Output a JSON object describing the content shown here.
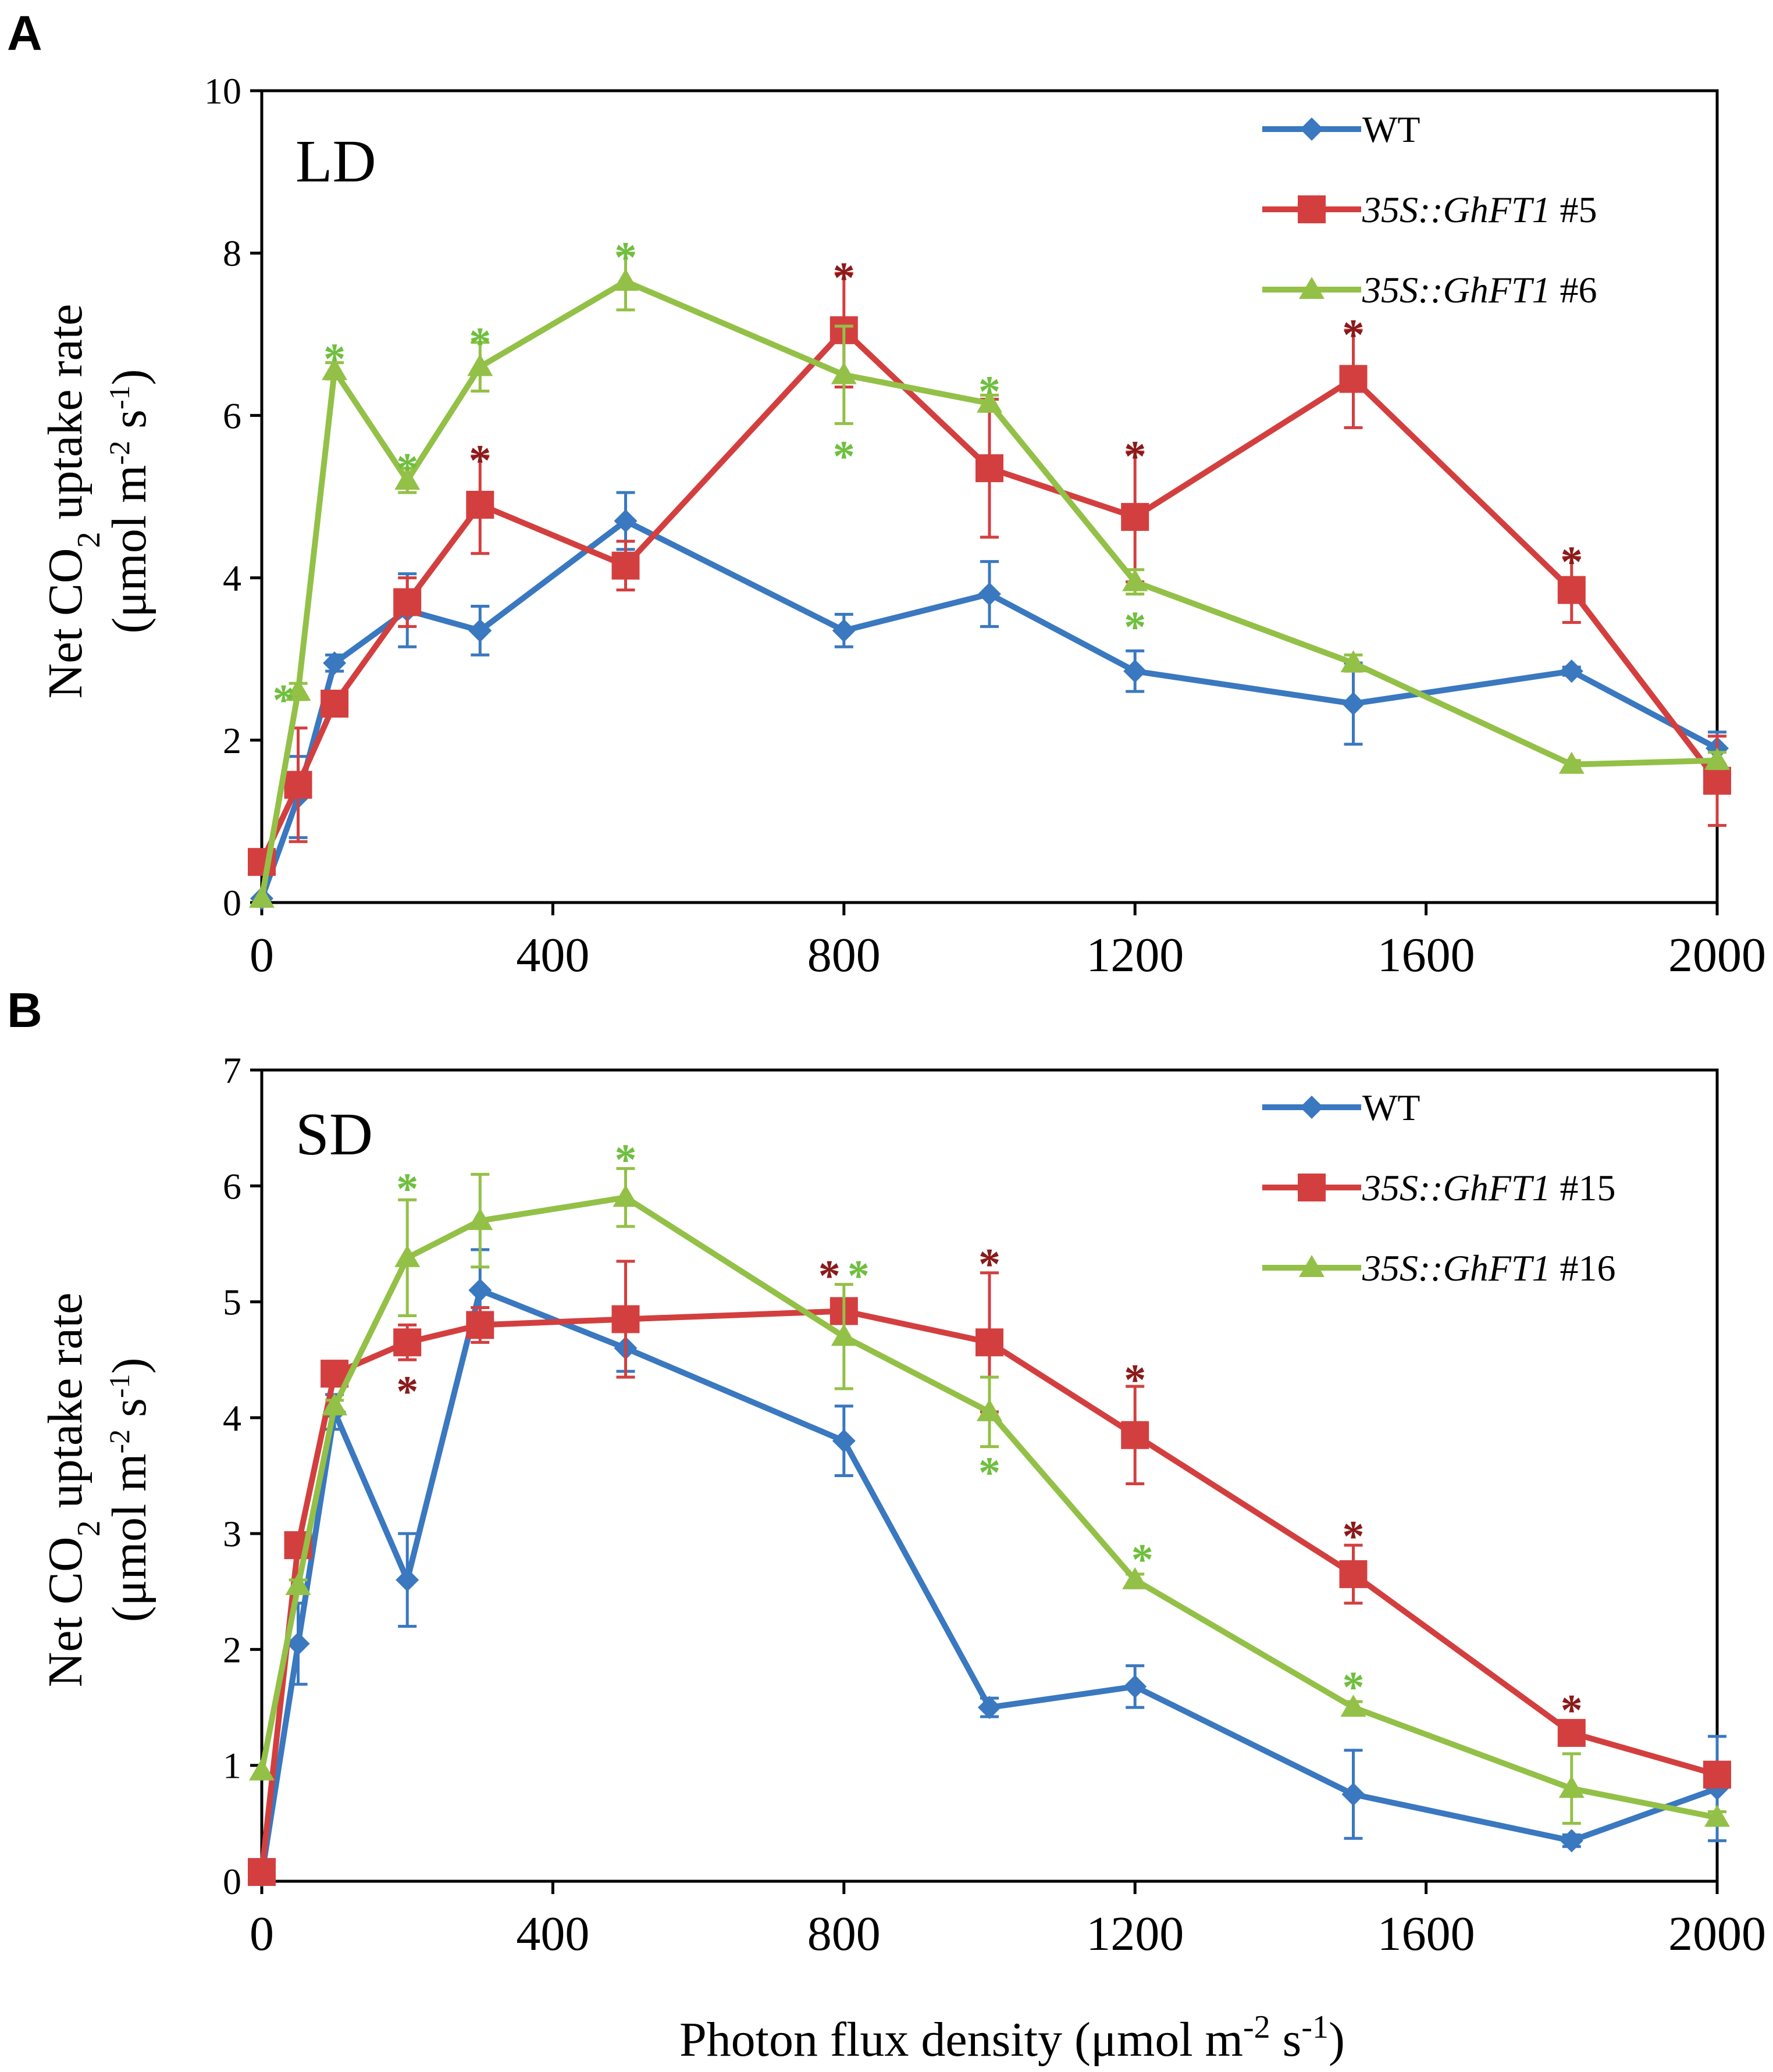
{
  "figure": {
    "x_axis_title": "Photon flux density (μmol m",
    "x_axis_title_sup1": "-2",
    "x_axis_title_mid": " s",
    "x_axis_title_sup2": "-1",
    "x_axis_title_end": ")",
    "y_axis_title_line1": "Net CO",
    "y_axis_title_line1_sub": "2",
    "y_axis_title_line1_end": " uptake rate",
    "y_axis_title_line2": "(μmol m",
    "y_axis_title_line2_sup1": "-2",
    "y_axis_title_line2_mid": " s",
    "y_axis_title_line2_sup2": "-1",
    "y_axis_title_line2_end": ")",
    "star_symbol": "*"
  },
  "colors": {
    "WT": "#3A78C0",
    "line_a": "#D33F3F",
    "line_b": "#93C047",
    "star_red": "#8B1A1A",
    "star_green": "#6FBF3F"
  },
  "chart_data": [
    {
      "panel": "A",
      "condition": "LD",
      "type": "line",
      "xlabel": "Photon flux density (μmol m-2 s-1)",
      "ylabel": "Net CO2 uptake rate (μmol m-2 s-1)",
      "xlim": [
        0,
        2000
      ],
      "ylim": [
        0,
        10
      ],
      "xticks": [
        0,
        400,
        800,
        1200,
        1600,
        2000
      ],
      "yticks": [
        0,
        2,
        4,
        6,
        8,
        10
      ],
      "legend_position": "top-right",
      "series": [
        {
          "name": "WT",
          "legend_plain": "WT",
          "legend_italic": "",
          "legend_suffix": "",
          "color_key": "WT",
          "marker": "diamond",
          "x": [
            0,
            50,
            100,
            200,
            300,
            500,
            800,
            1000,
            1200,
            1500,
            1800,
            2000
          ],
          "y": [
            0.05,
            1.3,
            2.95,
            3.6,
            3.35,
            4.7,
            3.35,
            3.8,
            2.85,
            2.45,
            2.85,
            1.9
          ],
          "err": [
            0,
            0.5,
            0.1,
            0.45,
            0.3,
            0.35,
            0.2,
            0.4,
            0.25,
            0.5,
            0.05,
            0.2
          ]
        },
        {
          "name": "35S::GhFT1 #5",
          "legend_plain": "",
          "legend_italic": "35S::GhFT1",
          "legend_suffix": " #5",
          "color_key": "line_a",
          "marker": "square",
          "x": [
            0,
            50,
            100,
            200,
            300,
            500,
            800,
            1000,
            1200,
            1500,
            1800,
            2000
          ],
          "y": [
            0.5,
            1.45,
            2.45,
            3.7,
            4.9,
            4.15,
            7.05,
            5.35,
            4.75,
            6.45,
            3.85,
            1.5
          ],
          "err": [
            0,
            0.7,
            0.1,
            0.3,
            0.6,
            0.3,
            0.7,
            0.85,
            0.8,
            0.6,
            0.4,
            0.55
          ]
        },
        {
          "name": "35S::GhFT1 #6",
          "legend_plain": "",
          "legend_italic": "35S::GhFT1",
          "legend_suffix": " #6",
          "color_key": "line_b",
          "marker": "triangle",
          "x": [
            0,
            50,
            100,
            200,
            300,
            500,
            800,
            1000,
            1200,
            1500,
            1800,
            2000
          ],
          "y": [
            0.05,
            2.6,
            6.55,
            5.2,
            6.6,
            7.65,
            6.5,
            6.15,
            3.95,
            2.95,
            1.7,
            1.75
          ],
          "err": [
            0,
            0.1,
            0.1,
            0.15,
            0.3,
            0.35,
            0.6,
            0.1,
            0.15,
            0.1,
            0.05,
            0.1
          ]
        }
      ],
      "annotations": [
        {
          "x": 300,
          "y": 5.55,
          "color_key": "star_red"
        },
        {
          "x": 800,
          "y": 7.8,
          "color_key": "star_red"
        },
        {
          "x": 1200,
          "y": 5.6,
          "color_key": "star_red"
        },
        {
          "x": 1500,
          "y": 7.1,
          "color_key": "star_red"
        },
        {
          "x": 1800,
          "y": 4.3,
          "color_key": "star_red"
        },
        {
          "x": 30,
          "y": 2.6,
          "color_key": "star_green"
        },
        {
          "x": 100,
          "y": 6.8,
          "color_key": "star_green"
        },
        {
          "x": 200,
          "y": 5.45,
          "color_key": "star_green"
        },
        {
          "x": 300,
          "y": 7.0,
          "color_key": "star_green"
        },
        {
          "x": 500,
          "y": 8.05,
          "color_key": "star_green"
        },
        {
          "x": 800,
          "y": 5.6,
          "color_key": "star_green"
        },
        {
          "x": 1000,
          "y": 6.4,
          "color_key": "star_green"
        },
        {
          "x": 1200,
          "y": 3.5,
          "color_key": "star_green"
        }
      ]
    },
    {
      "panel": "B",
      "condition": "SD",
      "type": "line",
      "xlabel": "Photon flux density (μmol m-2 s-1)",
      "ylabel": "Net CO2 uptake rate (μmol m-2 s-1)",
      "xlim": [
        0,
        2000
      ],
      "ylim": [
        0,
        7
      ],
      "xticks": [
        0,
        400,
        800,
        1200,
        1600,
        2000
      ],
      "yticks": [
        0,
        1,
        2,
        3,
        4,
        5,
        6,
        7
      ],
      "legend_position": "top-right",
      "series": [
        {
          "name": "WT",
          "legend_plain": "WT",
          "legend_italic": "",
          "legend_suffix": "",
          "color_key": "WT",
          "marker": "diamond",
          "x": [
            0,
            50,
            100,
            200,
            300,
            500,
            800,
            1000,
            1200,
            1500,
            1800,
            2000
          ],
          "y": [
            0.05,
            2.05,
            4.05,
            2.6,
            5.1,
            4.6,
            3.8,
            1.5,
            1.68,
            0.75,
            0.35,
            0.8
          ],
          "err": [
            0,
            0.35,
            0.15,
            0.4,
            0.35,
            0.2,
            0.3,
            0.08,
            0.18,
            0.38,
            0.05,
            0.45
          ]
        },
        {
          "name": "35S::GhFT1 #15",
          "legend_plain": "",
          "legend_italic": "35S::GhFT1",
          "legend_suffix": " #15",
          "color_key": "line_a",
          "marker": "square",
          "x": [
            0,
            50,
            100,
            200,
            300,
            500,
            800,
            1000,
            1200,
            1500,
            1800,
            2000
          ],
          "y": [
            0.08,
            2.9,
            4.38,
            4.65,
            4.8,
            4.85,
            4.92,
            4.65,
            3.85,
            2.65,
            1.28,
            0.92
          ],
          "err": [
            0,
            0.05,
            0.05,
            0.15,
            0.15,
            0.5,
            0.1,
            0.6,
            0.42,
            0.25,
            0.08,
            0.05
          ]
        },
        {
          "name": "35S::GhFT1 #16",
          "legend_plain": "",
          "legend_italic": "35S::GhFT1",
          "legend_suffix": " #16",
          "color_key": "line_b",
          "marker": "triangle",
          "x": [
            0,
            50,
            100,
            200,
            300,
            500,
            800,
            1000,
            1200,
            1500,
            1800,
            2000
          ],
          "y": [
            0.95,
            2.55,
            4.1,
            5.38,
            5.7,
            5.9,
            4.7,
            4.05,
            2.6,
            1.5,
            0.8,
            0.55
          ],
          "err": [
            0,
            0.05,
            0.05,
            0.5,
            0.4,
            0.25,
            0.45,
            0.3,
            0.05,
            0.05,
            0.3,
            0.05
          ]
        }
      ],
      "annotations": [
        {
          "x": 200,
          "y": 4.3,
          "color_key": "star_red"
        },
        {
          "x": 780,
          "y": 5.3,
          "color_key": "star_red"
        },
        {
          "x": 1000,
          "y": 5.4,
          "color_key": "star_red"
        },
        {
          "x": 1200,
          "y": 4.4,
          "color_key": "star_red"
        },
        {
          "x": 1500,
          "y": 3.05,
          "color_key": "star_red"
        },
        {
          "x": 1800,
          "y": 1.55,
          "color_key": "star_red"
        },
        {
          "x": 200,
          "y": 6.05,
          "color_key": "star_green"
        },
        {
          "x": 500,
          "y": 6.3,
          "color_key": "star_green"
        },
        {
          "x": 820,
          "y": 5.3,
          "color_key": "star_green"
        },
        {
          "x": 1000,
          "y": 3.6,
          "color_key": "star_green"
        },
        {
          "x": 1210,
          "y": 2.85,
          "color_key": "star_green"
        },
        {
          "x": 1500,
          "y": 1.75,
          "color_key": "star_green"
        }
      ]
    }
  ]
}
